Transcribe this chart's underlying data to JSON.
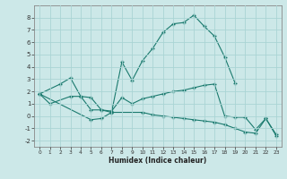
{
  "xlabel": "Humidex (Indice chaleur)",
  "bg_color": "#cce8e8",
  "grid_color": "#aad4d4",
  "line_color": "#1a7a6e",
  "xlim": [
    -0.5,
    23.5
  ],
  "ylim": [
    -2.5,
    9.0
  ],
  "yticks": [
    -2,
    -1,
    0,
    1,
    2,
    3,
    4,
    5,
    6,
    7,
    8
  ],
  "xticks": [
    0,
    1,
    2,
    3,
    4,
    5,
    6,
    7,
    8,
    9,
    10,
    11,
    12,
    13,
    14,
    15,
    16,
    17,
    18,
    19,
    20,
    21,
    22,
    23
  ],
  "line1_x": [
    0,
    2,
    3,
    4,
    5,
    6,
    7,
    8,
    9,
    10,
    11,
    12,
    13,
    14,
    15,
    16,
    17,
    18,
    19
  ],
  "line1_y": [
    1.8,
    2.6,
    3.1,
    1.6,
    1.5,
    0.5,
    0.3,
    4.4,
    2.9,
    4.5,
    5.5,
    6.8,
    7.5,
    7.6,
    8.2,
    7.3,
    6.5,
    4.8,
    2.7
  ],
  "line2_x": [
    0,
    1,
    3,
    4,
    5,
    6,
    7,
    8,
    9,
    10,
    11,
    12,
    13,
    14,
    15,
    16,
    17,
    18,
    19,
    20,
    21,
    22,
    23
  ],
  "line2_y": [
    1.8,
    1.0,
    1.6,
    1.6,
    0.5,
    0.5,
    0.4,
    1.5,
    1.0,
    1.4,
    1.6,
    1.8,
    2.0,
    2.1,
    2.3,
    2.5,
    2.6,
    0.0,
    -0.1,
    -0.1,
    -1.1,
    -0.2,
    -1.5
  ],
  "line3_x": [
    0,
    5,
    6,
    7,
    10,
    11,
    12,
    13,
    14,
    15,
    16,
    17,
    18,
    19,
    20,
    21,
    22,
    23
  ],
  "line3_y": [
    1.8,
    -0.3,
    -0.2,
    0.3,
    0.3,
    0.1,
    0.0,
    -0.1,
    -0.2,
    -0.3,
    -0.4,
    -0.5,
    -0.7,
    -1.0,
    -1.3,
    -1.4,
    -0.2,
    -1.6
  ]
}
